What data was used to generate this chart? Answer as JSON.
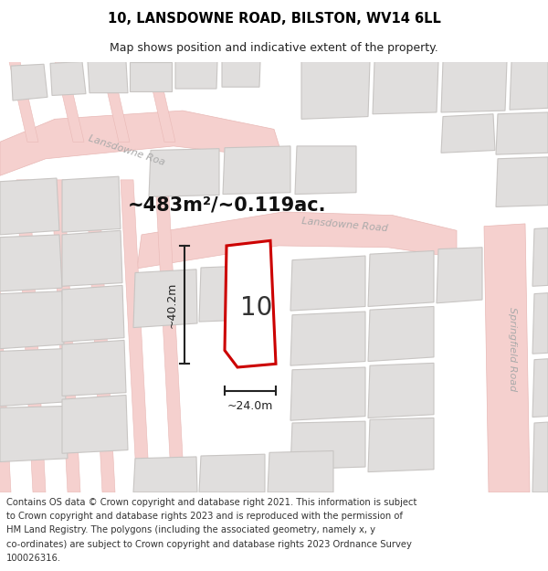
{
  "title": "10, LANSDOWNE ROAD, BILSTON, WV14 6LL",
  "subtitle": "Map shows position and indicative extent of the property.",
  "area_text": "~483m²/~0.119ac.",
  "dimension_width": "~24.0m",
  "dimension_height": "~40.2m",
  "property_number": "10",
  "footer_lines": [
    "Contains OS data © Crown copyright and database right 2021. This information is subject",
    "to Crown copyright and database rights 2023 and is reproduced with the permission of",
    "HM Land Registry. The polygons (including the associated geometry, namely x, y",
    "co-ordinates) are subject to Crown copyright and database rights 2023 Ordnance Survey",
    "100026316."
  ],
  "map_bg": "#f2efed",
  "road_fill": "#f5d0ce",
  "road_edge": "#e8b8b5",
  "block_fill": "#e0dedd",
  "block_edge": "#c8c5c3",
  "prop_fill": "#ffffff",
  "prop_edge": "#cc0000",
  "road_label_color": "#aaaaaa",
  "dim_color": "#222222",
  "title_fontsize": 10.5,
  "subtitle_fontsize": 9,
  "footer_fontsize": 7.2,
  "area_fontsize": 15,
  "number_fontsize": 20,
  "road_label_fontsize": 8
}
